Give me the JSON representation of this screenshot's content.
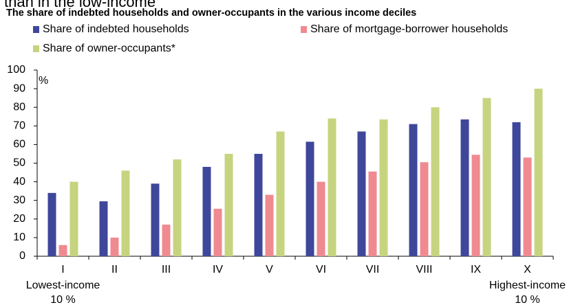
{
  "chart_data": {
    "type": "bar",
    "caption_fragment": "than in the low-income",
    "title": "The share of indebted households and owner-occupants in the various income deciles",
    "y_unit_label": "%",
    "categories": [
      "I",
      "II",
      "III",
      "IV",
      "V",
      "VI",
      "VII",
      "VIII",
      "IX",
      "X"
    ],
    "series": [
      {
        "name": "Share of indebted households",
        "color": "#3f479b",
        "values": [
          34,
          29.5,
          39,
          48,
          55,
          61.5,
          67,
          71,
          73.5,
          72
        ]
      },
      {
        "name": "Share of mortgage-borrower households",
        "color": "#f08a91",
        "values": [
          6,
          10,
          17,
          25.5,
          33,
          40,
          45.5,
          50.5,
          54.5,
          53
        ]
      },
      {
        "name": "Share of owner-occupants*",
        "color": "#c6d47f",
        "values": [
          40,
          46,
          52,
          55,
          67,
          74,
          73.5,
          80,
          85,
          90
        ]
      }
    ],
    "end_labels": [
      [
        "Lowest-income",
        "10 %"
      ],
      [
        "Highest-income",
        "10 %"
      ]
    ],
    "ylim": [
      0,
      100
    ],
    "yticks": [
      0,
      10,
      20,
      30,
      40,
      50,
      60,
      70,
      80,
      90,
      100
    ],
    "grid": false
  }
}
